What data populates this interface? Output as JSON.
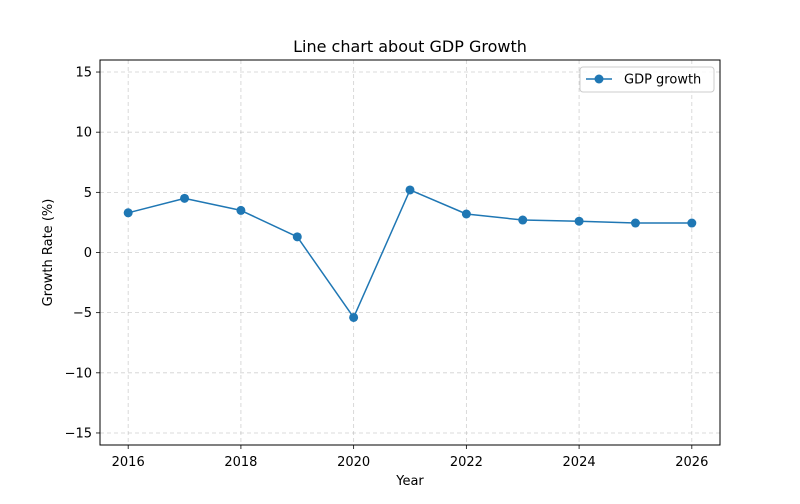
{
  "chart_data": {
    "type": "line",
    "title": "Line chart about GDP Growth",
    "xlabel": "Year",
    "ylabel": "Growth Rate (%)",
    "x": [
      2016,
      2017,
      2018,
      2019,
      2020,
      2021,
      2022,
      2023,
      2024,
      2025,
      2026
    ],
    "series": [
      {
        "name": "GDP growth",
        "color": "#1f77b4",
        "marker": "circle",
        "values": [
          3.3,
          4.5,
          3.5,
          1.3,
          -5.4,
          5.2,
          3.2,
          2.7,
          2.6,
          2.45,
          2.45
        ]
      }
    ],
    "xlim": [
      2015.5,
      2026.5
    ],
    "ylim": [
      -16,
      16
    ],
    "xticks": [
      2016,
      2018,
      2020,
      2022,
      2024,
      2026
    ],
    "yticks": [
      -15,
      -10,
      -5,
      0,
      5,
      10,
      15
    ],
    "ytick_labels": [
      "−15",
      "−10",
      "−5",
      "0",
      "5",
      "10",
      "15"
    ],
    "grid": true,
    "grid_style": "dashed",
    "legend_position": "top-right"
  }
}
